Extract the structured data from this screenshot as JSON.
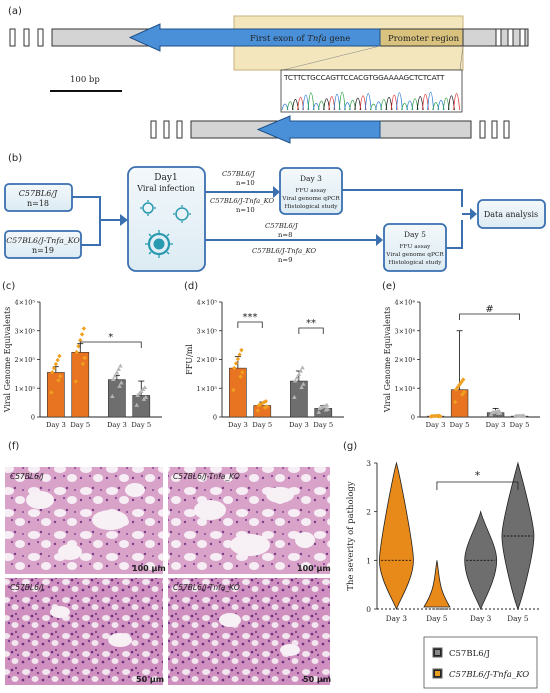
{
  "colors": {
    "arrow_blue": "#4a90d9",
    "promoter_box": "#f3e6bd",
    "panel_fill": "#eaf3f8",
    "panel_border": "#3a6fb0",
    "bar_wt": "#e87422",
    "bar_ko": "#6e6e6e",
    "point_wt": "#f0a020",
    "point_ko": "#b5b5b5",
    "violin_wt": "#e88a1a",
    "violin_ko": "#6e6e6e",
    "histology": "#d9a2c9"
  },
  "panel_a": {
    "label": "(a)",
    "exon_label_prefix": "First exon of ",
    "exon_label_gene": "Tnfa",
    "exon_label_suffix": " gene",
    "promoter_label": "Promoter region",
    "scale_label": "100 bp",
    "sequence": "TCTTCTGCCAGTTCCACGTGGAAAAGCTCTCATT"
  },
  "panel_b": {
    "label": "(b)",
    "wt_strain": "C57BL6/J",
    "wt_n": "n=18",
    "ko_strain": "C57BL6/J-Tnfa_KO",
    "ko_n": "n=19",
    "day1_title": "Day1",
    "day1_sub": "Viral infection",
    "branch_top_wt": "C57BL6/J",
    "branch_top_wt_n": "n=10",
    "branch_top_ko": "C57BL6/J-Tnfa_KO",
    "branch_top_ko_n": "n=10",
    "branch_bot_wt": "C57BL6/J",
    "branch_bot_wt_n": "n=8",
    "branch_bot_ko": "C57BL6/J-Tnfa_KO",
    "branch_bot_ko_n": "n=9",
    "day3_title": "Day 3",
    "day3_lines": [
      "FFU assay",
      "Viral genome qPCR",
      "Histological study"
    ],
    "day5_title": "Day 5",
    "day5_lines": [
      "FFU assay",
      "Viral genome qPCR",
      "Histological study"
    ],
    "analysis": "Data analysis"
  },
  "panel_f": {
    "label": "(f)",
    "tl": "C57BL6/J",
    "tr": "C57BL6/J-Tnfa_KO",
    "bl": "C57BL6/J",
    "br": "C57BL6/J-Tnfa_KO",
    "scale_top": "100 μm",
    "scale_bottom": "50 μm"
  },
  "legend": {
    "wt": "C57BL6/J",
    "ko": "C57BL6/J-Tnfa_KO"
  },
  "chart_data": [
    {
      "panel": "(c)",
      "type": "bar",
      "ylabel": "Viral Genome Equivalents",
      "ylim": [
        0,
        400000
      ],
      "yticks": [
        "0",
        "1×10⁵",
        "2×10⁵",
        "3×10⁵",
        "4×10⁵"
      ],
      "categories": [
        "Day 3",
        "Day 5",
        "Day 3",
        "Day 5"
      ],
      "values": [
        155000,
        225000,
        130000,
        75000
      ],
      "errors": [
        20000,
        30000,
        15000,
        50000
      ],
      "groups": [
        "C57BL6/J",
        "C57BL6/J",
        "C57BL6/J-Tnfa_KO",
        "C57BL6/J-Tnfa_KO"
      ],
      "significance": [
        {
          "between": [
            1,
            3
          ],
          "label": "*"
        }
      ]
    },
    {
      "panel": "(d)",
      "type": "bar",
      "ylabel": "FFU/ml",
      "ylim": [
        0,
        400000
      ],
      "yticks": [
        "0",
        "1×10⁵",
        "2×10⁵",
        "3×10⁵",
        "4×10⁵"
      ],
      "categories": [
        "Day 3",
        "Day 5",
        "Day 3",
        "Day 5"
      ],
      "values": [
        170000,
        40000,
        125000,
        30000
      ],
      "errors": [
        40000,
        12000,
        35000,
        10000
      ],
      "groups": [
        "C57BL6/J",
        "C57BL6/J",
        "C57BL6/J-Tnfa_KO",
        "C57BL6/J-Tnfa_KO"
      ],
      "significance": [
        {
          "between": [
            0,
            1
          ],
          "label": "***"
        },
        {
          "between": [
            2,
            3
          ],
          "label": "**"
        }
      ]
    },
    {
      "panel": "(e)",
      "type": "bar",
      "ylabel": "Viral Genome Equivalents",
      "ylim": [
        0,
        40000
      ],
      "yticks": [
        "0",
        "1×10⁴",
        "2×10⁴",
        "3×10⁴",
        "4×10⁴"
      ],
      "categories": [
        "Day 3",
        "Day 5",
        "Day 3",
        "Day 5"
      ],
      "values": [
        300,
        9500,
        1500,
        300
      ],
      "errors": [
        300,
        20500,
        1500,
        300
      ],
      "groups": [
        "C57BL6/J",
        "C57BL6/J",
        "C57BL6/J-Tnfa_KO",
        "C57BL6/J-Tnfa_KO"
      ],
      "significance": [
        {
          "between": [
            1,
            3
          ],
          "label": "#"
        }
      ]
    },
    {
      "panel": "(g)",
      "type": "violin",
      "ylabel": "The severity of pathology",
      "ylim": [
        0,
        3
      ],
      "yticks": [
        "0",
        "1",
        "2",
        "3"
      ],
      "categories": [
        "Day 3",
        "Day 5",
        "Day 3",
        "Day 5"
      ],
      "groups": [
        "C57BL6/J-Tnfa_KO",
        "C57BL6/J-Tnfa_KO",
        "C57BL6/J",
        "C57BL6/J"
      ],
      "median": [
        1,
        0,
        1,
        1.5
      ],
      "range": [
        [
          0,
          3
        ],
        [
          0,
          1
        ],
        [
          0,
          2
        ],
        [
          0,
          3
        ]
      ],
      "significance": [
        {
          "between": [
            1,
            3
          ],
          "label": "*"
        }
      ]
    }
  ]
}
